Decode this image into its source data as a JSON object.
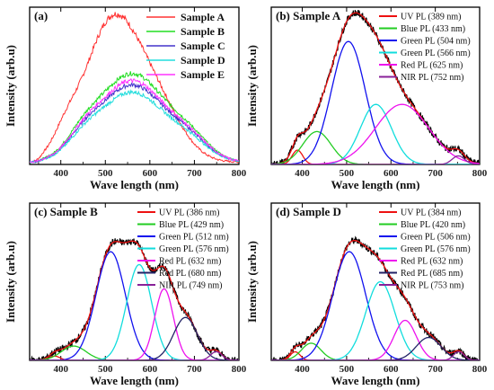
{
  "chart_data": [
    {
      "type": "line",
      "panel_label": "(a)",
      "title": "",
      "xlabel": "Wave length (nm)",
      "ylabel": "Intensity (arb.u)",
      "xlim": [
        330,
        800
      ],
      "ylim": [
        0,
        1.05
      ],
      "xticks": [
        400,
        500,
        600,
        700,
        800
      ],
      "legend_position": "top-right",
      "series": [
        {
          "name": "Sample A",
          "color": "#ff3333",
          "peak": 1.0,
          "shape": "a"
        },
        {
          "name": "Sample B",
          "color": "#22dd22",
          "peak": 0.62,
          "shape": "b"
        },
        {
          "name": "Sample C",
          "color": "#4433cc",
          "peak": 0.54,
          "shape": "b"
        },
        {
          "name": "Sample D",
          "color": "#22dddd",
          "peak": 0.49,
          "shape": "b"
        },
        {
          "name": "Sample E",
          "color": "#ff33ff",
          "peak": 0.57,
          "shape": "b"
        }
      ]
    },
    {
      "type": "line",
      "panel_label": "(b) Sample A",
      "xlabel": "Wave length (nm)",
      "ylabel": "Intensity (arb.u)",
      "xlim": [
        330,
        800
      ],
      "ylim": [
        0,
        1.1
      ],
      "xticks": [
        400,
        500,
        600,
        700,
        800
      ],
      "legend_position": "top-right",
      "components": [
        {
          "name": "UV PL (389 nm)",
          "center": 389,
          "width": 12,
          "amplitude": 0.1,
          "color": "#ee1111"
        },
        {
          "name": "Blue PL (433 nm)",
          "center": 433,
          "width": 32,
          "amplitude": 0.23,
          "color": "#22cc22"
        },
        {
          "name": "Green PL (504 nm)",
          "center": 504,
          "width": 38,
          "amplitude": 0.86,
          "color": "#1111ee"
        },
        {
          "name": "Green PL (566 nm)",
          "center": 566,
          "width": 35,
          "amplitude": 0.42,
          "color": "#11dddd"
        },
        {
          "name": "Red PL (625 nm)",
          "center": 625,
          "width": 60,
          "amplitude": 0.42,
          "color": "#ee11ee"
        },
        {
          "name": "NIR PL (752 nm)",
          "center": 752,
          "width": 14,
          "amplitude": 0.06,
          "color": "#882299"
        }
      ]
    },
    {
      "type": "line",
      "panel_label": "(c) Sample B",
      "xlabel": "Wave length (nm)",
      "ylabel": "Intensity (arb.u)",
      "xlim": [
        330,
        800
      ],
      "ylim": [
        0,
        1.1
      ],
      "xticks": [
        400,
        500,
        600,
        700,
        800
      ],
      "legend_position": "top-right",
      "components": [
        {
          "name": "UV PL (386 nm)",
          "center": 386,
          "width": 12,
          "amplitude": 0.03,
          "color": "#ee1111"
        },
        {
          "name": "Blue PL (429 nm)",
          "center": 429,
          "width": 28,
          "amplitude": 0.1,
          "color": "#22cc22"
        },
        {
          "name": "Green PL (512 nm)",
          "center": 512,
          "width": 33,
          "amplitude": 0.76,
          "color": "#1111ee"
        },
        {
          "name": "Green PL (576 nm)",
          "center": 576,
          "width": 28,
          "amplitude": 0.67,
          "color": "#11dddd"
        },
        {
          "name": "Red PL (632 nm)",
          "center": 632,
          "width": 21,
          "amplitude": 0.5,
          "color": "#ee11ee"
        },
        {
          "name": "Red PL (680 nm)",
          "center": 680,
          "width": 27,
          "amplitude": 0.3,
          "color": "#222266"
        },
        {
          "name": "NIR PL (749 nm)",
          "center": 749,
          "width": 13,
          "amplitude": 0.06,
          "color": "#882299"
        }
      ]
    },
    {
      "type": "line",
      "panel_label": "(d) Sample D",
      "xlabel": "Wave length (nm)",
      "ylabel": "Intensity (arb.u)",
      "xlim": [
        330,
        800
      ],
      "ylim": [
        0,
        1.1
      ],
      "xticks": [
        400,
        500,
        600,
        700,
        800
      ],
      "legend_position": "top-right",
      "components": [
        {
          "name": "UV PL (384 nm)",
          "center": 384,
          "width": 11,
          "amplitude": 0.06,
          "color": "#ee1111"
        },
        {
          "name": "Blue PL (420 nm)",
          "center": 420,
          "width": 22,
          "amplitude": 0.12,
          "color": "#22cc22"
        },
        {
          "name": "Green PL (506 nm)",
          "center": 506,
          "width": 37,
          "amplitude": 0.76,
          "color": "#1111ee"
        },
        {
          "name": "Green PL (576 nm)",
          "center": 576,
          "width": 33,
          "amplitude": 0.55,
          "color": "#11dddd"
        },
        {
          "name": "Red PL (632 nm)",
          "center": 632,
          "width": 25,
          "amplitude": 0.28,
          "color": "#ee11ee"
        },
        {
          "name": "Red PL (685 nm)",
          "center": 685,
          "width": 28,
          "amplitude": 0.16,
          "color": "#222266"
        },
        {
          "name": "NIR PL (753 nm)",
          "center": 753,
          "width": 12,
          "amplitude": 0.06,
          "color": "#882299"
        }
      ]
    }
  ]
}
